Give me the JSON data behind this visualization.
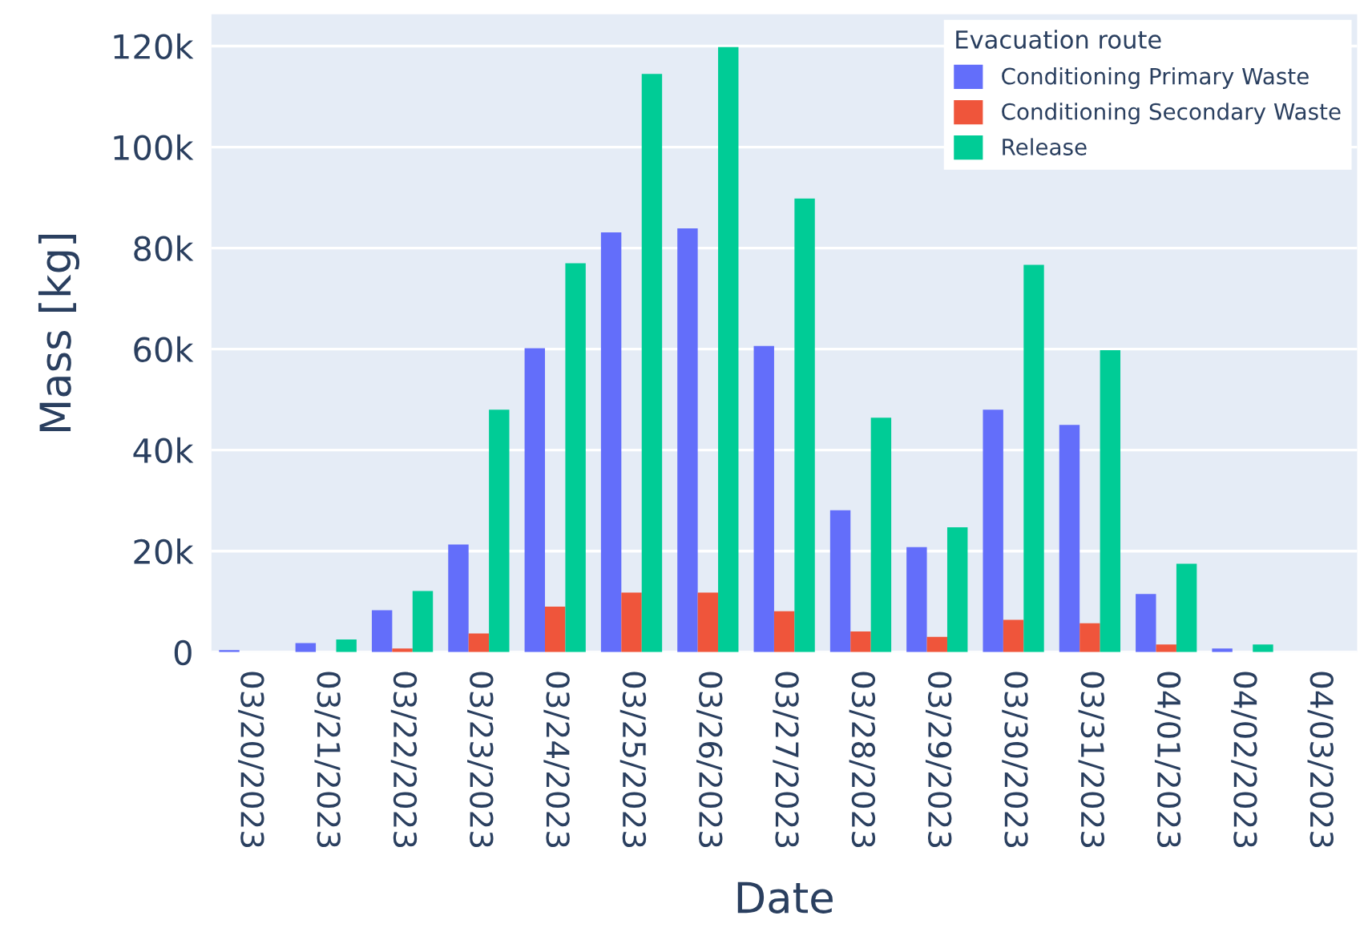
{
  "chart_data": {
    "type": "bar",
    "xlabel": "Date",
    "ylabel": "Mass [kg]",
    "legend_title": "Evacuation route",
    "categories": [
      "03/20/2023",
      "03/21/2023",
      "03/22/2023",
      "03/23/2023",
      "03/24/2023",
      "03/25/2023",
      "03/26/2023",
      "03/27/2023",
      "03/28/2023",
      "03/29/2023",
      "03/30/2023",
      "03/31/2023",
      "04/01/2023",
      "04/02/2023",
      "04/03/2023"
    ],
    "series": [
      {
        "name": "Conditioning Primary Waste",
        "color": "#636efa",
        "values": [
          400,
          1800,
          8300,
          21300,
          60200,
          83100,
          83900,
          60600,
          28100,
          20800,
          48000,
          45000,
          11500,
          700,
          null
        ]
      },
      {
        "name": "Conditioning Secondary Waste",
        "color": "#ef553b",
        "values": [
          null,
          null,
          700,
          3700,
          9000,
          11800,
          11800,
          8100,
          4100,
          3000,
          6400,
          5700,
          1500,
          null,
          null
        ]
      },
      {
        "name": "Release",
        "color": "#00cc96",
        "values": [
          null,
          2500,
          12100,
          48000,
          77000,
          114500,
          119800,
          89800,
          46400,
          24700,
          76700,
          59800,
          17500,
          1500,
          null
        ]
      }
    ],
    "ylim": [
      0,
      126300
    ],
    "yticks": [
      {
        "value": 0,
        "label": "0"
      },
      {
        "value": 20000,
        "label": "20k"
      },
      {
        "value": 40000,
        "label": "40k"
      },
      {
        "value": 60000,
        "label": "60k"
      },
      {
        "value": 80000,
        "label": "80k"
      },
      {
        "value": 100000,
        "label": "100k"
      },
      {
        "value": 120000,
        "label": "120k"
      }
    ],
    "grid": "y",
    "legend": "top right"
  }
}
